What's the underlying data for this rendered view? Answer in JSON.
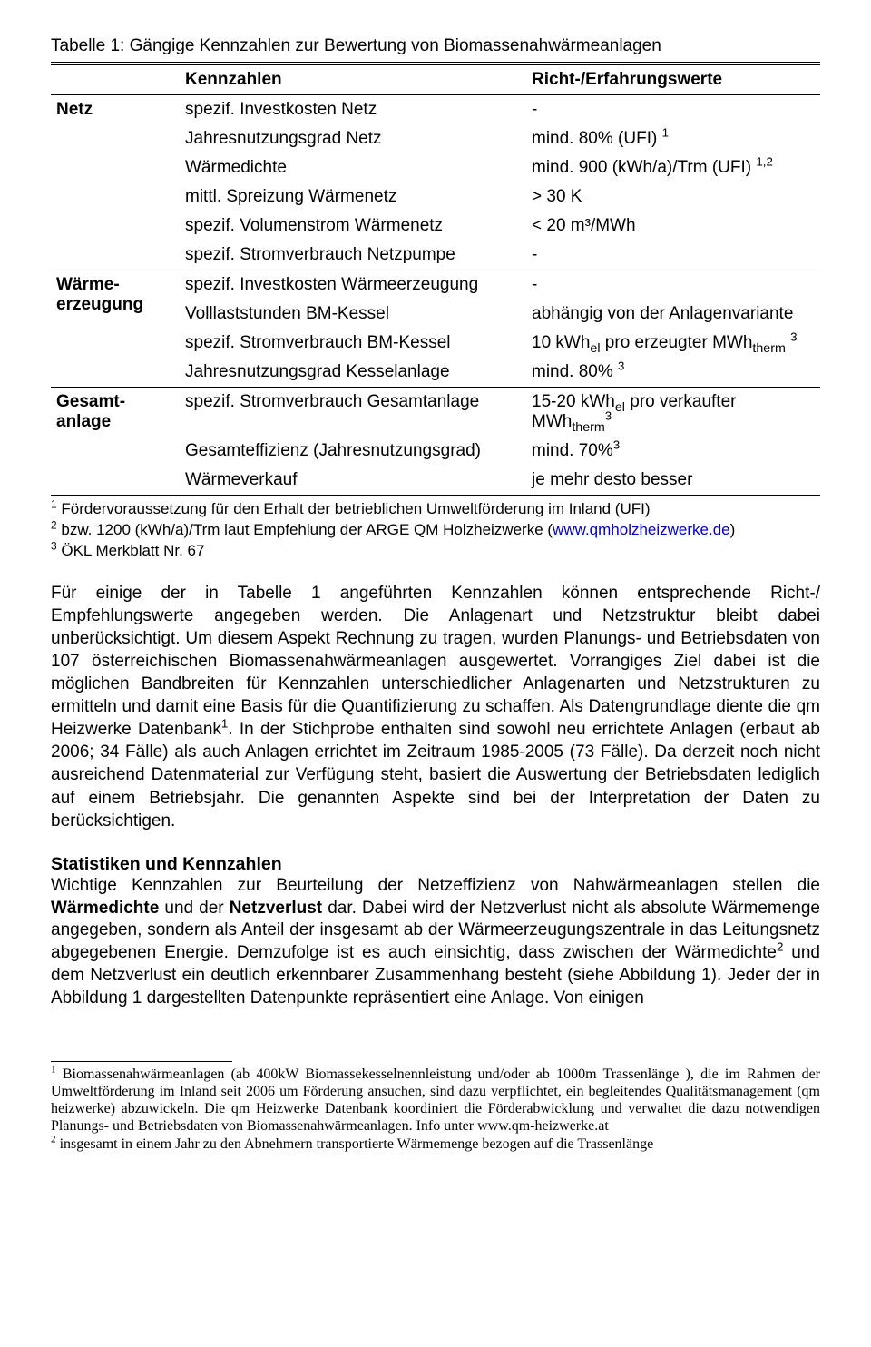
{
  "caption": "Tabelle 1: Gängige Kennzahlen zur Bewertung von Biomassenahwärmeanlagen",
  "headers": {
    "col0": "",
    "col1": "Kennzahlen",
    "col2": "Richt-/Erfahrungswerte"
  },
  "groups": [
    {
      "name": "Netz",
      "rows": [
        {
          "k": "spezif. Investkosten Netz",
          "v": "-"
        },
        {
          "k": "Jahresnutzungsgrad Netz",
          "v_html": "mind. 80% (UFI) <sup>1</sup>"
        },
        {
          "k": "Wärmedichte",
          "v_html": "mind. 900 (kWh/a)/Trm (UFI) <sup>1,2</sup>"
        },
        {
          "k": "mittl. Spreizung Wärmenetz",
          "v": "> 30 K"
        },
        {
          "k": "spezif. Volumenstrom Wärmenetz",
          "v": "< 20 m³/MWh"
        },
        {
          "k": "spezif. Stromverbrauch Netzpumpe",
          "v": "-"
        }
      ]
    },
    {
      "name_html": "Wärme-<br>erzeugung",
      "rows": [
        {
          "k": "spezif. Investkosten Wärmeerzeugung",
          "v": "-"
        },
        {
          "k": "Volllaststunden BM-Kessel",
          "v": "abhängig von der Anlagenvariante"
        },
        {
          "k": "spezif. Stromverbrauch BM-Kessel",
          "v_html": "10 kWh<sub>el</sub> pro erzeugter MWh<sub>therm</sub> <sup>3</sup>"
        },
        {
          "k": "Jahresnutzungsgrad Kesselanlage",
          "v_html": "mind. 80% <sup>3</sup>"
        }
      ]
    },
    {
      "name_html": "Gesamt-<br>anlage",
      "rows": [
        {
          "k": "spezif. Stromverbrauch Gesamtanlage",
          "v_html": "15-20 kWh<sub>el</sub> pro verkaufter MWh<sub>therm</sub><sup>3</sup>"
        },
        {
          "k": "Gesamteffizienz  (Jahresnutzungsgrad)",
          "v_html": "mind. 70%<sup>3</sup>"
        },
        {
          "k": "Wärmeverkauf",
          "v": "je mehr desto besser"
        }
      ]
    }
  ],
  "topfoot": {
    "f1": "Fördervoraussetzung für den Erhalt der betrieblichen Umweltförderung im Inland (UFI)",
    "f2_pre": "bzw. 1200 (kWh/a)/Trm laut Empfehlung der ARGE QM Holzheizwerke (",
    "f2_link": "www.qmholzheizwerke.de",
    "f2_post": ")",
    "f3": "ÖKL Merkblatt Nr. 67"
  },
  "para1_html": "Für einige der in Tabelle 1 angeführten Kennzahlen können entsprechende Richt-/ Empfehlungswerte angegeben werden. Die Anlagenart und Netzstruktur bleibt dabei unberücksichtigt. Um diesem Aspekt Rechnung zu tragen, wurden Planungs- und Betriebsdaten von 107 österreichischen Biomassenahwärmeanlagen ausgewertet. Vorrangiges Ziel dabei ist die möglichen Bandbreiten für Kennzahlen unterschiedlicher Anlagenarten und Netzstrukturen zu ermitteln und damit eine Basis für die Quantifizierung zu schaffen. Als Datengrundlage diente die qm Heizwerke Datenbank<sup>1</sup>. In der Stichprobe enthalten sind sowohl neu errichtete Anlagen (erbaut ab 2006; 34 Fälle) als auch Anlagen errichtet im Zeitraum 1985-2005 (73 Fälle). Da derzeit noch nicht ausreichend Datenmaterial zur Verfügung steht, basiert die Auswertung der Betriebsdaten lediglich auf einem Betriebsjahr. Die genannten Aspekte sind bei der Interpretation der Daten zu berücksichtigen.",
  "section_title": "Statistiken und Kennzahlen",
  "para2_html": "Wichtige Kennzahlen zur Beurteilung der Netzeffizienz von Nahwärmeanlagen stellen die <span class=\"bold\">Wärmedichte</span> und der <span class=\"bold\">Netzverlust</span> dar. Dabei wird der Netzverlust nicht als absolute Wärmemenge angegeben, sondern als Anteil der insgesamt ab der Wärmeerzeugungszentrale in das Leitungsnetz abgegebenen Energie. Demzufolge ist es auch einsichtig, dass zwischen der Wärmedichte<sup>2</sup> und dem Netzverlust ein deutlich erkennbarer Zusammenhang besteht (siehe Abbildung 1). Jeder der in Abbildung 1 dargestellten Datenpunkte repräsentiert eine Anlage. Von einigen",
  "bottomfoot": {
    "f1": "Biomassenahwärmeanlagen (ab 400kW Biomassekesselnennleistung und/oder ab 1000m Trassenlänge ), die im Rahmen der Umweltförderung im Inland seit 2006 um Förderung ansuchen, sind dazu verpflichtet, ein begleitendes Qualitätsmanagement (qm heizwerke) abzuwickeln. Die qm Heizwerke Datenbank koordiniert die Förderabwicklung und verwaltet die dazu notwendigen Planungs- und Betriebsdaten von Biomassenahwärmeanlagen. Info unter www.qm-heizwerke.at",
    "f2": "insgesamt in einem Jahr zu den Abnehmern transportierte Wärmemenge bezogen auf die Trassenlänge"
  }
}
